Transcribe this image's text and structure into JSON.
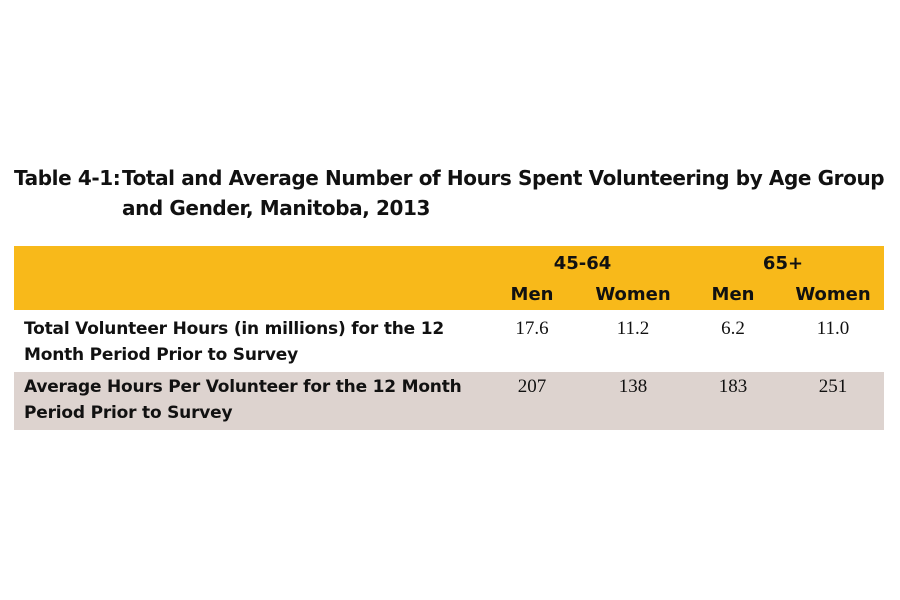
{
  "title": {
    "label": "Table 4-1:",
    "lines": [
      "Total and Average Number of Hours Spent Volunteering by Age Group",
      "and Gender, Manitoba, 2013"
    ]
  },
  "table": {
    "groups": [
      "45-64",
      "65+"
    ],
    "columns": [
      "Men",
      "Women",
      "Men",
      "Women"
    ],
    "rows": [
      {
        "label": [
          "Total Volunteer Hours (in millions) for the 12",
          "Month Period Prior to Survey"
        ],
        "values": [
          "17.6",
          "11.2",
          "6.2",
          "11.0"
        ]
      },
      {
        "label": [
          "Average Hours Per Volunteer for the 12 Month",
          "Period Prior to Survey"
        ],
        "values": [
          "207",
          "138",
          "183",
          "251"
        ]
      }
    ]
  }
}
